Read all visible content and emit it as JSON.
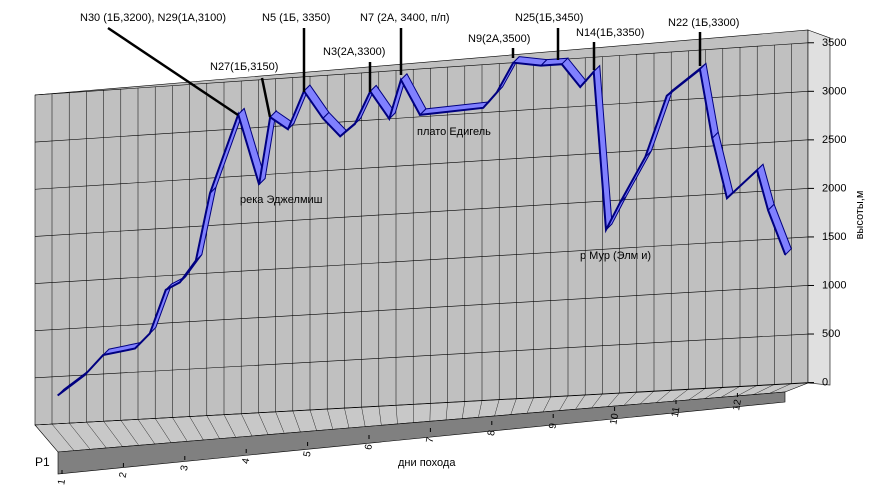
{
  "chart_data": {
    "type": "line3d",
    "x_label": "дни похода",
    "y_label": "высоты,м",
    "series_label": "P1",
    "xlim": [
      1,
      13
    ],
    "xticks": [
      1,
      2,
      3,
      4,
      5,
      6,
      7,
      8,
      9,
      10,
      11,
      12
    ],
    "ylim": [
      0,
      3500
    ],
    "yticks": [
      0,
      500,
      1000,
      1500,
      2000,
      2500,
      3000,
      3500
    ],
    "grid": true,
    "series": [
      {
        "name": "P1",
        "color": "#8080ff",
        "x": [
          0.93,
          1.37,
          1.67,
          2.19,
          2.43,
          2.69,
          2.92,
          3.18,
          3.41,
          3.87,
          4.21,
          4.39,
          4.68,
          4.94,
          5.25,
          5.53,
          5.77,
          6.02,
          6.33,
          6.52,
          6.83,
          7.86,
          8.08,
          8.35,
          8.8,
          9.14,
          9.44,
          9.66,
          9.86,
          10.09,
          10.5,
          10.85,
          11.39,
          11.59,
          11.83,
          12.32,
          12.5,
          12.78
        ],
        "values": [
          300,
          500,
          700,
          750,
          900,
          1350,
          1420,
          1640,
          2340,
          3150,
          2400,
          3100,
          2960,
          3350,
          3050,
          2850,
          2970,
          3300,
          3000,
          3400,
          3020,
          3050,
          3200,
          3500,
          3450,
          3450,
          3200,
          3350,
          1700,
          1975,
          2430,
          3050,
          3300,
          2580,
          1950,
          2220,
          1800,
          1330
        ]
      }
    ],
    "annotations": [
      "N30 (1Б,3200), N29(1А,3100)",
      "N5 (1Б, 3350)",
      "N7 (2А, 3400, п/п)",
      "N25(1Б,3450)",
      "N22 (1Б,3300)",
      "N27(1Б,3150)",
      "N3(2А,3300)",
      "N9(2А,3500)",
      "N14(1Б,3350)",
      "река Эджелмиш",
      "плато Едигель",
      "р Мур (Элм и)"
    ]
  }
}
